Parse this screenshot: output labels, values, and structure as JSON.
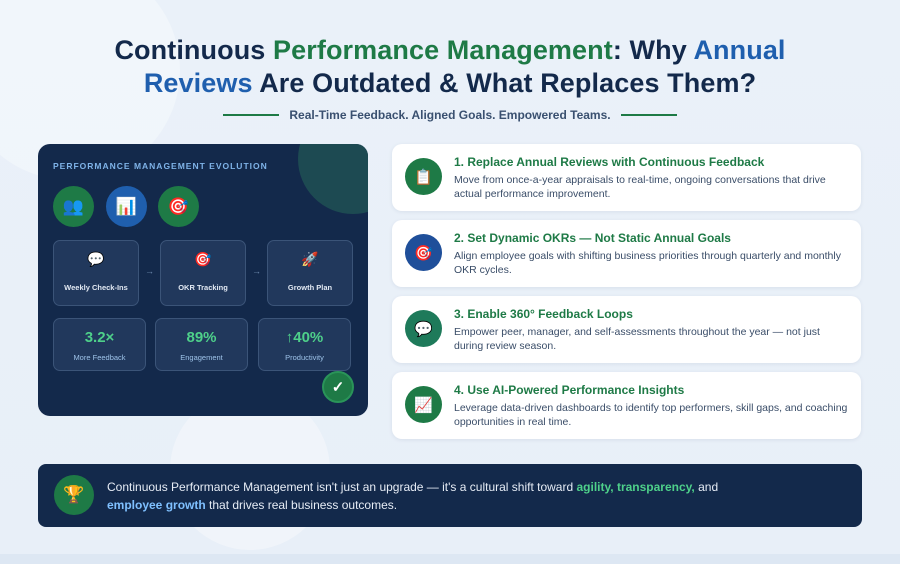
{
  "header": {
    "title_part1": "Continuous ",
    "title_part2": "Performance Management",
    "title_part3": ": Why ",
    "title_part4": "Annual",
    "title_part5": "Reviews",
    "title_part6": " Are Outdated & What Replaces Them?",
    "subtitle": "Real-Time Feedback. Aligned Goals. Empowered Teams."
  },
  "panel": {
    "heading": "PERFORMANCE MANAGEMENT EVOLUTION",
    "circle_icons": [
      {
        "icon": "people-icon",
        "glyph": "👥",
        "color": "#1e7a46"
      },
      {
        "icon": "bar-chart-icon",
        "glyph": "📊",
        "color": "#1f5fae"
      },
      {
        "icon": "target-icon",
        "glyph": "🎯",
        "color": "#1e7a46"
      }
    ],
    "steps": [
      {
        "icon": "speech-bubble-icon",
        "glyph": "💬",
        "label": "Weekly Check-Ins"
      },
      {
        "icon": "target-icon",
        "glyph": "🎯",
        "label": "OKR Tracking"
      },
      {
        "icon": "rocket-icon",
        "glyph": "🚀",
        "label": "Growth Plan"
      }
    ],
    "arrow": "→",
    "stats": [
      {
        "value": "3.2×",
        "caption": "More Feedback"
      },
      {
        "value": "89%",
        "caption": "Engagement"
      },
      {
        "value": "↑40%",
        "caption": "Productivity"
      }
    ],
    "check_glyph": "✓"
  },
  "cards": [
    {
      "icon": "clipboard-icon",
      "glyph": "📋",
      "icon_bg": "#1e7a46",
      "title": "1. Replace Annual Reviews with Continuous Feedback",
      "desc": "Move from once-a-year appraisals to real-time, ongoing conversations that drive actual performance improvement."
    },
    {
      "icon": "target-icon",
      "glyph": "🎯",
      "icon_bg": "#1f4f9a",
      "title": "2. Set Dynamic OKRs — Not Static Annual Goals",
      "desc": "Align employee goals with shifting business priorities through quarterly and monthly OKR cycles."
    },
    {
      "icon": "speech-bubble-icon",
      "glyph": "💬",
      "icon_bg": "#1e7a5a",
      "title": "3. Enable 360° Feedback Loops",
      "desc": "Empower peer, manager, and self-assessments throughout the year — not just during review season."
    },
    {
      "icon": "trend-chart-icon",
      "glyph": "📈",
      "icon_bg": "#1e7a46",
      "title": "4. Use AI-Powered Performance Insights",
      "desc": "Leverage data-driven dashboards to identify top performers, skill gaps, and coaching opportunities in real time."
    }
  ],
  "banner": {
    "icon": "trophy-icon",
    "glyph": "🏆",
    "text_part1": "Continuous Performance Management isn't just an upgrade — it's a cultural shift toward ",
    "highlight1": "agility, transparency,",
    "text_part2": " and",
    "highlight2": "employee growth",
    "text_part3": " that drives real business outcomes."
  }
}
